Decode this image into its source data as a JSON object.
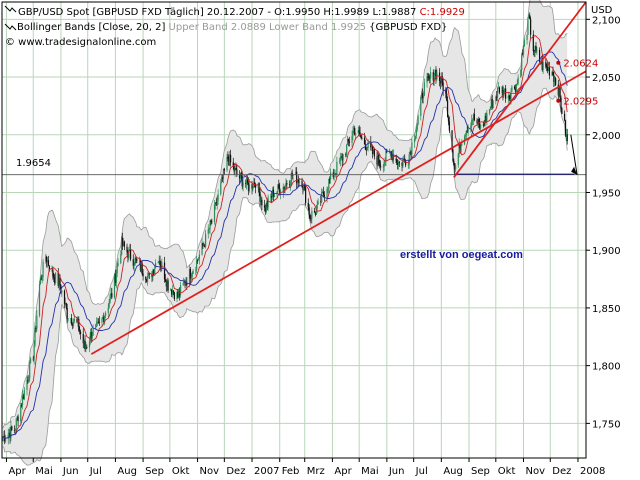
{
  "header": {
    "line1_main": "GBP/USD Spot [GBPUSD FXD  Täglich] 20.12.2007 - O:1.9950 H:1.9989 L:1.9887 ",
    "line1_close": "C:1.9929",
    "line2_main": "Bollinger Bands [Close, 20, 2] ",
    "line2_bands": "Upper Band 2.0889 Lower Band 1.9925",
    "line2_symbol": " {GBPUSD FXD}",
    "line3": "© www.tradesignalonline.com"
  },
  "watermark": "erstellt von oegeat.com",
  "colors": {
    "background": "#ffffff",
    "band_fill": "#e6e6e6",
    "band_line": "#9a9a9a",
    "up_candle": "#2e8b57",
    "down_candle": "#111111",
    "ma_fast": "#cc2222",
    "ma_slow": "#2233aa",
    "trend": "#e02020",
    "support": "#1a1a7a",
    "watermark": "#1a1aa0",
    "close_label": "#cc0000",
    "grid": "#b9d6b9"
  },
  "chart_data": {
    "type": "candlestick",
    "title": "GBP/USD Spot [GBPUSD FXD  Täglich]",
    "currency_label": "USD",
    "ylim": [
      1.72,
      2.115
    ],
    "y_ticks": [
      "1,750",
      "1,800",
      "1,850",
      "1,900",
      "1,950",
      "2,000",
      "2,050",
      "2,100"
    ],
    "y_tick_values": [
      1.75,
      1.8,
      1.85,
      1.9,
      1.95,
      2.0,
      2.05,
      2.1
    ],
    "x_range": [
      "2006-03-27",
      "2008-01-10"
    ],
    "x_ticks": [
      "Apr",
      "Mai",
      "Jun",
      "Jul",
      "Aug",
      "Sep",
      "Okt",
      "Nov",
      "Dez",
      "2007",
      "Feb",
      "Mrz",
      "Apr",
      "Mai",
      "Jun",
      "Jul",
      "Aug",
      "Sep",
      "Okt",
      "Nov",
      "Dez",
      "2008"
    ],
    "x_tick_dates": [
      "2006-04-01",
      "2006-05-01",
      "2006-06-01",
      "2006-07-01",
      "2006-08-01",
      "2006-09-01",
      "2006-10-01",
      "2006-11-01",
      "2006-12-01",
      "2007-01-01",
      "2007-02-01",
      "2007-03-01",
      "2007-04-01",
      "2007-05-01",
      "2007-06-01",
      "2007-07-01",
      "2007-08-01",
      "2007-09-01",
      "2007-10-01",
      "2007-11-01",
      "2007-12-01",
      "2008-01-01"
    ],
    "close_path": [
      [
        "2006-03-28",
        1.738
      ],
      [
        "2006-04-10",
        1.745
      ],
      [
        "2006-04-20",
        1.775
      ],
      [
        "2006-05-01",
        1.81
      ],
      [
        "2006-05-08",
        1.87
      ],
      [
        "2006-05-15",
        1.895
      ],
      [
        "2006-05-22",
        1.88
      ],
      [
        "2006-05-31",
        1.87
      ],
      [
        "2006-06-08",
        1.845
      ],
      [
        "2006-06-20",
        1.835
      ],
      [
        "2006-06-28",
        1.815
      ],
      [
        "2006-07-05",
        1.828
      ],
      [
        "2006-07-15",
        1.835
      ],
      [
        "2006-07-28",
        1.862
      ],
      [
        "2006-08-08",
        1.905
      ],
      [
        "2006-08-20",
        1.893
      ],
      [
        "2006-08-30",
        1.885
      ],
      [
        "2006-09-08",
        1.875
      ],
      [
        "2006-09-18",
        1.895
      ],
      [
        "2006-09-29",
        1.87
      ],
      [
        "2006-10-10",
        1.86
      ],
      [
        "2006-10-20",
        1.875
      ],
      [
        "2006-10-31",
        1.89
      ],
      [
        "2006-11-08",
        1.905
      ],
      [
        "2006-11-17",
        1.925
      ],
      [
        "2006-11-27",
        1.955
      ],
      [
        "2006-12-05",
        1.98
      ],
      [
        "2006-12-15",
        1.965
      ],
      [
        "2006-12-29",
        1.955
      ],
      [
        "2007-01-05",
        1.96
      ],
      [
        "2007-01-15",
        1.935
      ],
      [
        "2007-01-25",
        1.95
      ],
      [
        "2007-02-05",
        1.955
      ],
      [
        "2007-02-15",
        1.965
      ],
      [
        "2007-02-26",
        1.96
      ],
      [
        "2007-03-07",
        1.93
      ],
      [
        "2007-03-15",
        1.935
      ],
      [
        "2007-03-25",
        1.955
      ],
      [
        "2007-04-05",
        1.97
      ],
      [
        "2007-04-15",
        1.985
      ],
      [
        "2007-04-25",
        2.005
      ],
      [
        "2007-05-05",
        1.995
      ],
      [
        "2007-05-15",
        1.985
      ],
      [
        "2007-05-25",
        1.975
      ],
      [
        "2007-06-05",
        1.985
      ],
      [
        "2007-06-15",
        1.975
      ],
      [
        "2007-06-25",
        1.98
      ],
      [
        "2007-07-05",
        2.01
      ],
      [
        "2007-07-12",
        2.04
      ],
      [
        "2007-07-25",
        2.055
      ],
      [
        "2007-08-05",
        2.04
      ],
      [
        "2007-08-16",
        1.97
      ],
      [
        "2007-08-25",
        2.0
      ],
      [
        "2007-09-05",
        2.015
      ],
      [
        "2007-09-15",
        2.005
      ],
      [
        "2007-09-25",
        2.025
      ],
      [
        "2007-10-05",
        2.04
      ],
      [
        "2007-10-15",
        2.035
      ],
      [
        "2007-10-25",
        2.045
      ],
      [
        "2007-11-07",
        2.1
      ],
      [
        "2007-11-12",
        2.075
      ],
      [
        "2007-11-22",
        2.06
      ],
      [
        "2007-12-03",
        2.055
      ],
      [
        "2007-12-10",
        2.04
      ],
      [
        "2007-12-20",
        1.993
      ]
    ],
    "series": [
      {
        "name": "Upper Band",
        "last_value": 2.0889
      },
      {
        "name": "Lower Band",
        "last_value": 1.9925
      }
    ],
    "trendlines": [
      {
        "from": [
          "2006-07-05",
          1.81
        ],
        "to": [
          "2008-01-10",
          2.055
        ]
      },
      {
        "from": [
          "2007-08-15",
          1.963
        ],
        "to": [
          "2008-01-10",
          2.115
        ]
      }
    ],
    "support_line": {
      "value": 1.9654,
      "label": "1.9654",
      "from": "2007-08-16",
      "to": "2007-12-28"
    },
    "horizontal_line": 1.9654,
    "projection_arrow": {
      "from": [
        "2007-12-24",
        2.0
      ],
      "to": [
        "2007-12-31",
        1.9654
      ]
    },
    "annotations": [
      {
        "label": "2.0624",
        "date": "2007-12-10",
        "value": 2.0624
      },
      {
        "label": "2.0295",
        "date": "2007-12-10",
        "value": 2.0295
      }
    ],
    "grid": true,
    "legend": "top-left"
  }
}
